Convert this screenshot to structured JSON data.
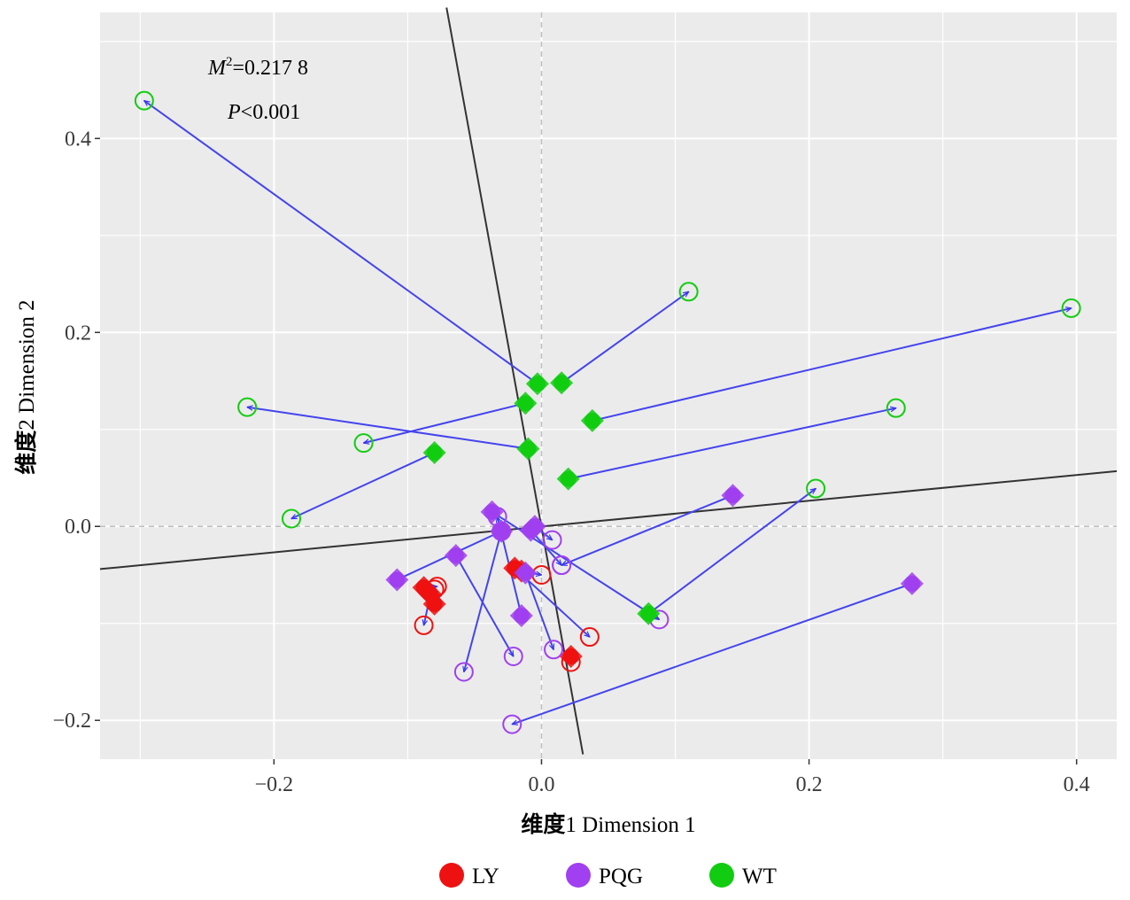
{
  "chart_data": {
    "type": "scatter",
    "subtype": "procrustes",
    "xlabel": {
      "zh": "维度",
      "en": "1 Dimension 1"
    },
    "ylabel": {
      "zh": "维度",
      "en": "2 Dimension 2"
    },
    "xlim": [
      -0.33,
      0.43
    ],
    "ylim": [
      -0.24,
      0.53
    ],
    "x_ticks": [
      -0.2,
      0.0,
      0.2,
      0.4
    ],
    "y_ticks": [
      -0.2,
      0.0,
      0.2,
      0.4
    ],
    "x_tick_labels": [
      "−0.2",
      "0.0",
      "0.2",
      "0.4"
    ],
    "y_tick_labels": [
      "−0.2",
      "0.0",
      "0.2",
      "0.4"
    ],
    "grid": true,
    "annotation": {
      "m2_symbol": "M",
      "m2_sup": "2",
      "m2_value": "=0.217 8",
      "p_symbol": "P",
      "p_value": "<0.001"
    },
    "rotation_axes": [
      {
        "from": [
          -0.33,
          -0.044
        ],
        "to": [
          0.43,
          0.057
        ]
      },
      {
        "from": [
          -0.071,
          0.535
        ],
        "to": [
          0.031,
          -0.235
        ]
      }
    ],
    "series": [
      {
        "name": "LY",
        "color": "#ee1111",
        "pairs": [
          {
            "start": [
              -0.088,
              -0.063
            ],
            "end": [
              -0.078,
              -0.062
            ]
          },
          {
            "start": [
              -0.083,
              -0.07
            ],
            "end": [
              -0.088,
              -0.102
            ]
          },
          {
            "start": [
              -0.08,
              -0.08
            ],
            "end": [
              -0.08,
              -0.065
            ]
          },
          {
            "start": [
              -0.02,
              -0.043
            ],
            "end": [
              0.036,
              -0.114
            ]
          },
          {
            "start": [
              -0.015,
              -0.046
            ],
            "end": [
              0.0,
              -0.05
            ]
          },
          {
            "start": [
              0.022,
              -0.134
            ],
            "end": [
              0.022,
              -0.14
            ]
          }
        ]
      },
      {
        "name": "PQG",
        "color": "#a040f0",
        "pairs": [
          {
            "start": [
              -0.108,
              -0.055
            ],
            "end": [
              -0.03,
              -0.005
            ]
          },
          {
            "start": [
              -0.064,
              -0.03
            ],
            "end": [
              -0.021,
              -0.134
            ]
          },
          {
            "start": [
              -0.037,
              0.015
            ],
            "end": [
              0.088,
              -0.096
            ]
          },
          {
            "start": [
              -0.03,
              -0.005
            ],
            "end": [
              -0.058,
              -0.15
            ]
          },
          {
            "start": [
              -0.015,
              -0.092
            ],
            "end": [
              -0.033,
              0.01
            ]
          },
          {
            "start": [
              -0.012,
              -0.048
            ],
            "end": [
              0.009,
              -0.127
            ]
          },
          {
            "start": [
              -0.005,
              0.0
            ],
            "end": [
              0.008,
              -0.014
            ]
          },
          {
            "start": [
              -0.008,
              -0.004
            ],
            "end": [
              0.015,
              -0.04
            ]
          },
          {
            "start": [
              0.143,
              0.032
            ],
            "end": [
              0.015,
              -0.04
            ]
          },
          {
            "start": [
              0.277,
              -0.059
            ],
            "end": [
              -0.022,
              -0.204
            ]
          }
        ]
      },
      {
        "name": "WT",
        "color": "#11cc11",
        "pairs": [
          {
            "start": [
              -0.003,
              0.147
            ],
            "end": [
              -0.297,
              0.439
            ]
          },
          {
            "start": [
              0.015,
              0.148
            ],
            "end": [
              0.11,
              0.242
            ]
          },
          {
            "start": [
              -0.012,
              0.127
            ],
            "end": [
              -0.133,
              0.086
            ]
          },
          {
            "start": [
              -0.01,
              0.08
            ],
            "end": [
              -0.22,
              0.123
            ]
          },
          {
            "start": [
              0.038,
              0.109
            ],
            "end": [
              0.396,
              0.225
            ]
          },
          {
            "start": [
              0.02,
              0.049
            ],
            "end": [
              0.265,
              0.122
            ]
          },
          {
            "start": [
              -0.08,
              0.076
            ],
            "end": [
              -0.187,
              0.008
            ]
          },
          {
            "start": [
              0.08,
              -0.09
            ],
            "end": [
              0.205,
              0.039
            ]
          }
        ]
      }
    ],
    "legend": {
      "position": "bottom",
      "items": [
        "LY",
        "PQG",
        "WT"
      ]
    }
  }
}
